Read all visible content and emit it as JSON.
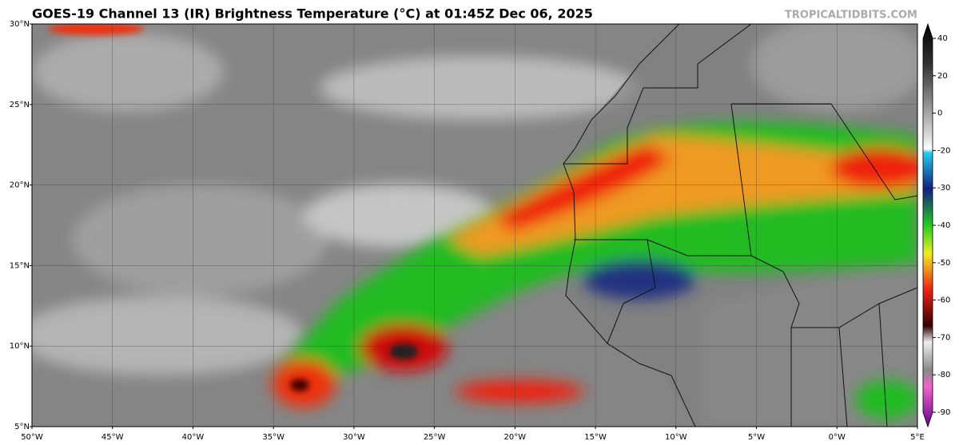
{
  "header": {
    "title": "GOES-19 Channel 13 (IR) Brightness Temperature (°C) at 01:45Z Dec 06, 2025",
    "credit": "TROPICALTIDBITS.COM"
  },
  "map": {
    "lat_labels": [
      "30°N",
      "25°N",
      "20°N",
      "15°N",
      "10°N",
      "5°N"
    ],
    "lon_labels": [
      "50°W",
      "45°W",
      "40°W",
      "35°W",
      "30°W",
      "25°W",
      "20°W",
      "15°W",
      "10°W",
      "5°W",
      "0°W",
      "5°E"
    ]
  },
  "colorbar": {
    "ticks": [
      40,
      20,
      0,
      -20,
      -30,
      -40,
      -50,
      -60,
      -70,
      -80,
      -90
    ]
  }
}
